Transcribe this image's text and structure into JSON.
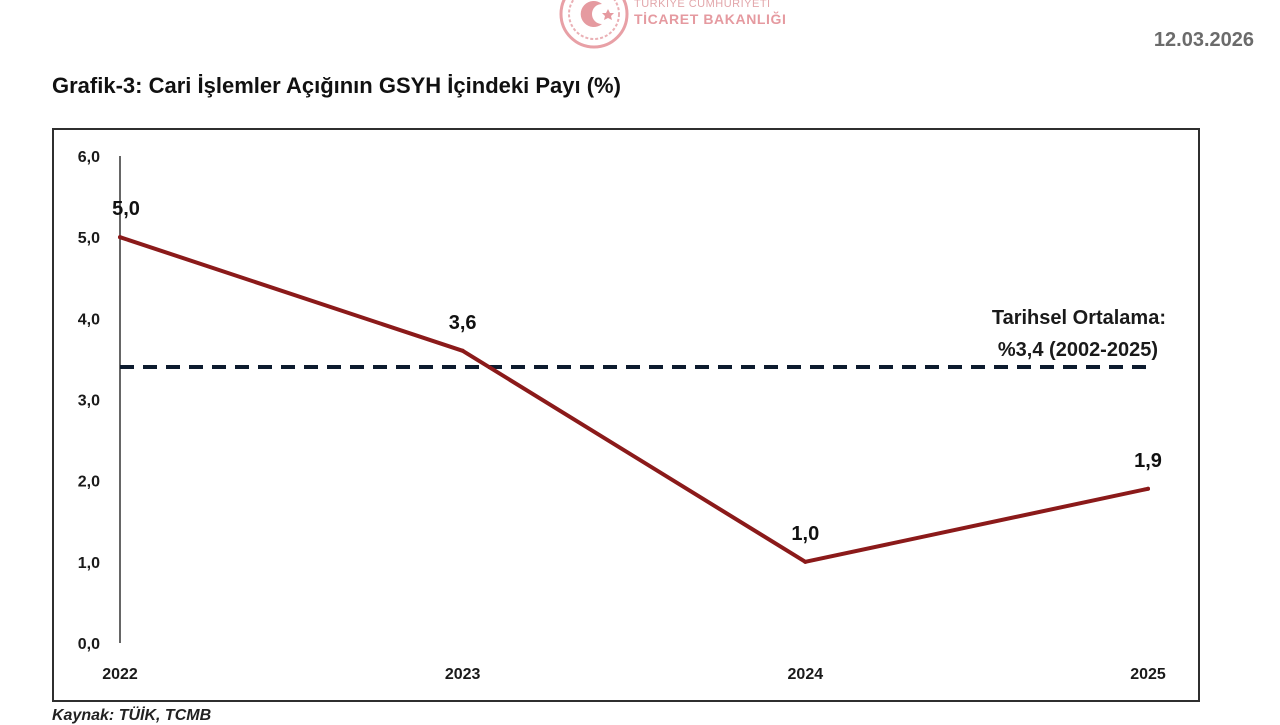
{
  "header": {
    "logo_line1": "TÜRKİYE CUMHURİYETİ",
    "logo_line2": "TİCARET BAKANLIĞI",
    "date": "12.03.2026"
  },
  "footer": {
    "source": "Kaynak: TÜİK, TCMB"
  },
  "colors": {
    "series": "#8b1a1a",
    "reference": "#0d1b2e",
    "logo": "#d9434f"
  },
  "chart_data": {
    "type": "line",
    "title": "Grafik-3: Cari İşlemler Açığının GSYH İçindeki Payı (%)",
    "xlabel": "",
    "ylabel": "",
    "categories": [
      "2022",
      "2023",
      "2024",
      "2025"
    ],
    "series": [
      {
        "values": [
          5.0,
          3.6,
          1.0,
          1.9
        ],
        "data_labels": [
          "5,0",
          "3,6",
          "1,0",
          "1,9"
        ]
      }
    ],
    "ylim": [
      0,
      6
    ],
    "yticks": [
      0,
      1,
      2,
      3,
      4,
      5,
      6
    ],
    "ytick_labels": [
      "0,0",
      "1,0",
      "2,0",
      "3,0",
      "4,0",
      "5,0",
      "6,0"
    ],
    "grid": false,
    "legend": "none",
    "reference_line": {
      "value": 3.4,
      "style": "dashed",
      "label_line1": "Tarihsel Ortalama:",
      "label_line2": "%3,4 (2002-2025)"
    }
  }
}
